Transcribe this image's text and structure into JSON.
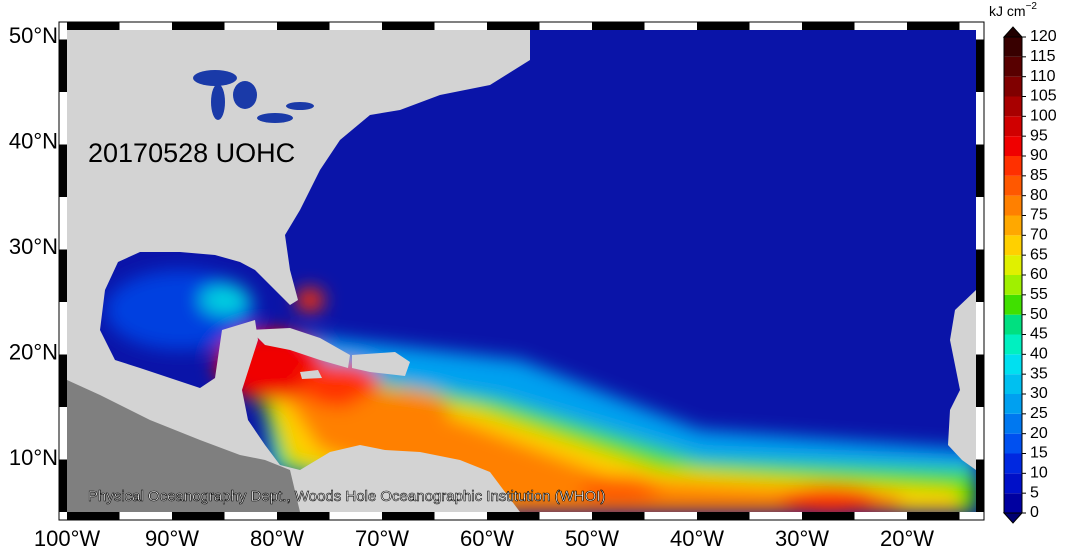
{
  "map": {
    "title": "20170528 UOHC",
    "credit": "Physical Oceanography Dept., Woods Hole Oceanographic Institution (WHOI)",
    "lat_labels": [
      "50°N",
      "40°N",
      "30°N",
      "20°N",
      "10°N"
    ],
    "lon_labels": [
      "100°W",
      "90°W",
      "80°W",
      "70°W",
      "60°W",
      "50°W",
      "40°W",
      "30°W",
      "20°W"
    ]
  },
  "colorbar": {
    "unit": "kJ cm",
    "unit_exponent": "−2",
    "ticks": [
      0,
      5,
      10,
      15,
      20,
      25,
      30,
      35,
      40,
      45,
      50,
      55,
      60,
      65,
      70,
      75,
      80,
      85,
      90,
      95,
      100,
      105,
      110,
      115,
      120
    ],
    "colors": [
      "#0000a0",
      "#0010c8",
      "#0028e0",
      "#0050f0",
      "#0078f0",
      "#00a0f0",
      "#00c0f0",
      "#00e0f0",
      "#00f0c0",
      "#00e080",
      "#40e000",
      "#a0f000",
      "#e0f000",
      "#ffd000",
      "#ffa800",
      "#ff8000",
      "#ff5800",
      "#ff3000",
      "#f00000",
      "#d00000",
      "#a80000",
      "#800000",
      "#580000",
      "#380000"
    ],
    "under_color": "#000070",
    "over_color": "#200000"
  }
}
